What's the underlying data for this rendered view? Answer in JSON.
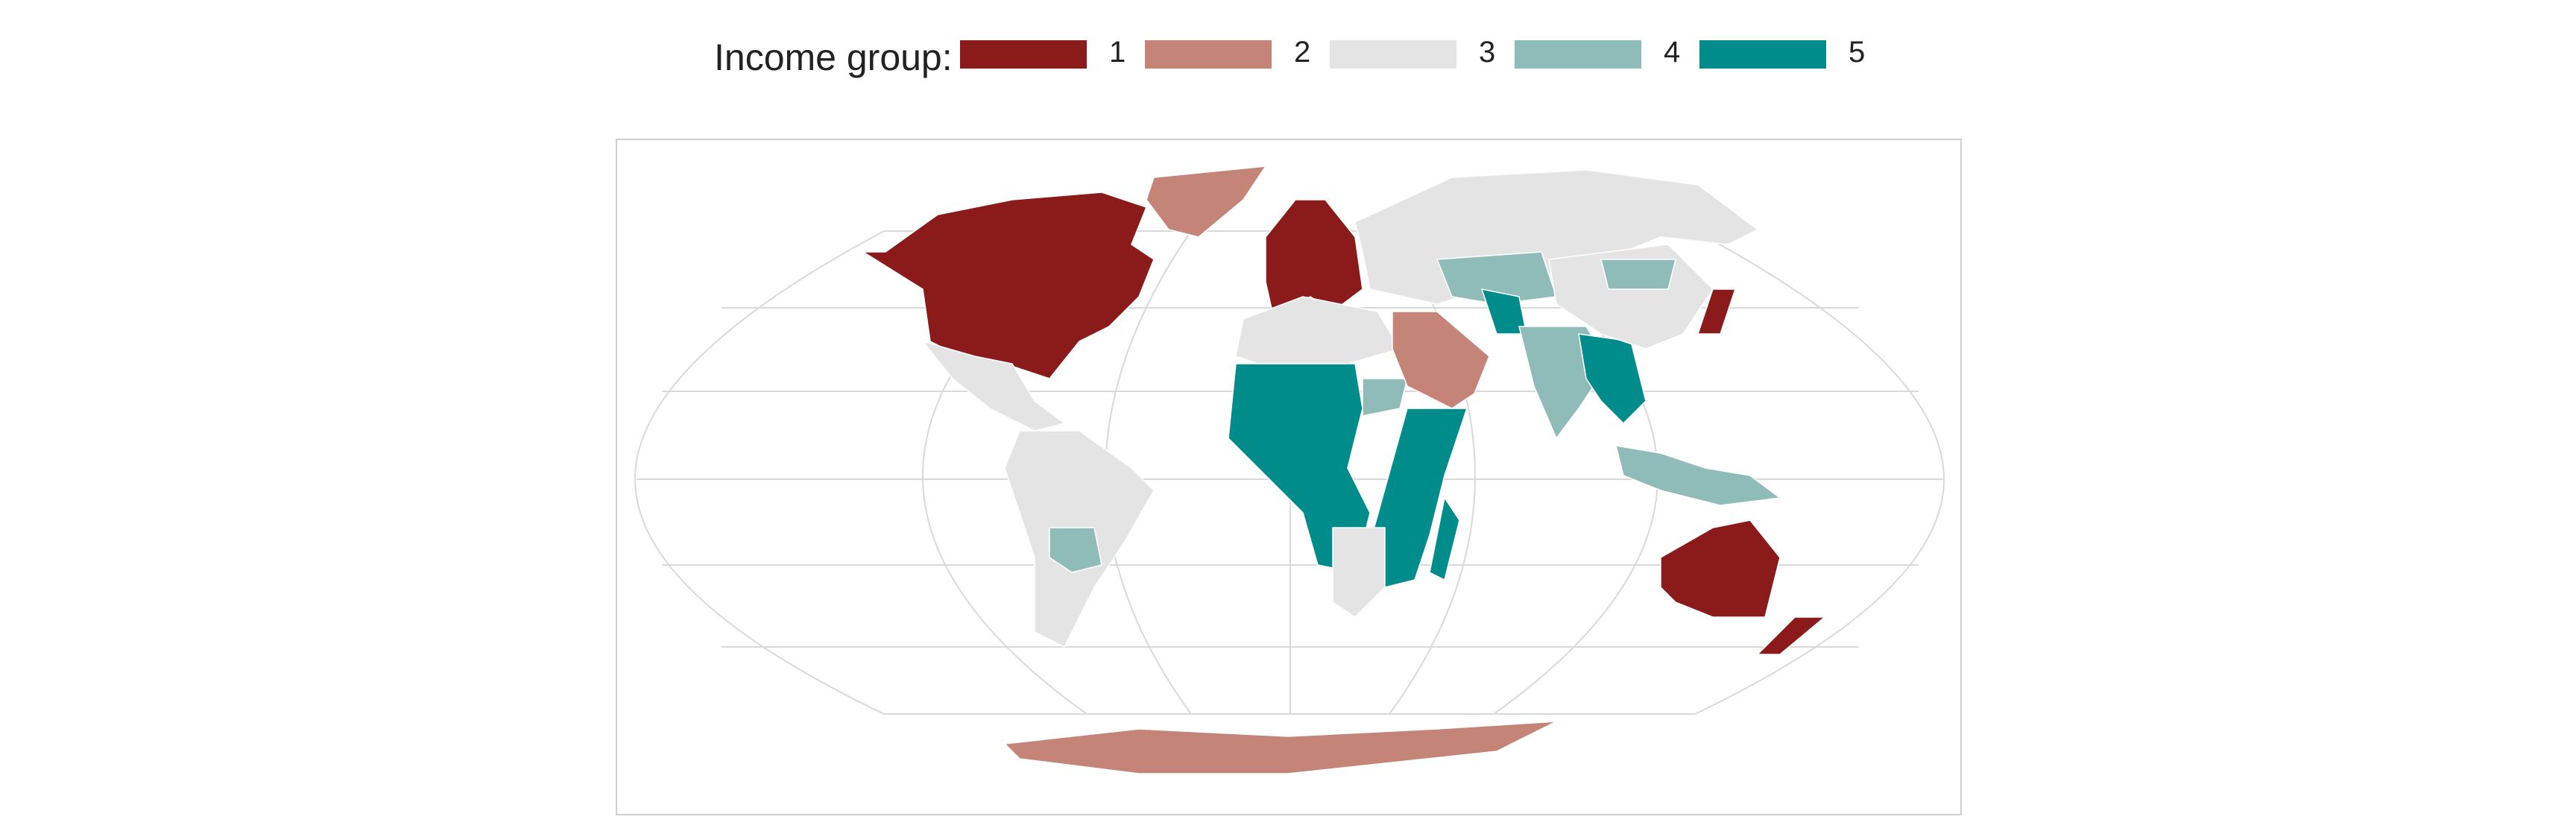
{
  "legend": {
    "title": "Income group:",
    "items": [
      {
        "label": "1",
        "color": "#8B1A1A"
      },
      {
        "label": "2",
        "color": "#C48478"
      },
      {
        "label": "3",
        "color": "#E4E4E4"
      },
      {
        "label": "4",
        "color": "#8FBCB8"
      },
      {
        "label": "5",
        "color": "#008C8A"
      }
    ]
  },
  "map": {
    "projection": "world map with graticule",
    "regions": [
      {
        "name": "North America (USA & Canada)",
        "group": "1"
      },
      {
        "name": "Greenland",
        "group": "2"
      },
      {
        "name": "Western Europe",
        "group": "1"
      },
      {
        "name": "Russia / North Asia",
        "group": "3"
      },
      {
        "name": "Mexico & Central America",
        "group": "3"
      },
      {
        "name": "South America",
        "group": "3"
      },
      {
        "name": "Bolivia",
        "group": "4"
      },
      {
        "name": "North Africa",
        "group": "3"
      },
      {
        "name": "West & Central Africa",
        "group": "5"
      },
      {
        "name": "Sudan region",
        "group": "4"
      },
      {
        "name": "East Africa",
        "group": "5"
      },
      {
        "name": "Southern Africa",
        "group": "3"
      },
      {
        "name": "Madagascar",
        "group": "5"
      },
      {
        "name": "Arabian Peninsula",
        "group": "2"
      },
      {
        "name": "Central Asia",
        "group": "4"
      },
      {
        "name": "Afghanistan",
        "group": "5"
      },
      {
        "name": "India",
        "group": "4"
      },
      {
        "name": "Southeast Asia mainland",
        "group": "5"
      },
      {
        "name": "China",
        "group": "3"
      },
      {
        "name": "Mongolia",
        "group": "4"
      },
      {
        "name": "Japan",
        "group": "1"
      },
      {
        "name": "Indonesia & Philippines",
        "group": "4"
      },
      {
        "name": "Australia",
        "group": "1"
      },
      {
        "name": "New Zealand",
        "group": "1"
      },
      {
        "name": "Antarctica",
        "group": "2"
      }
    ]
  }
}
